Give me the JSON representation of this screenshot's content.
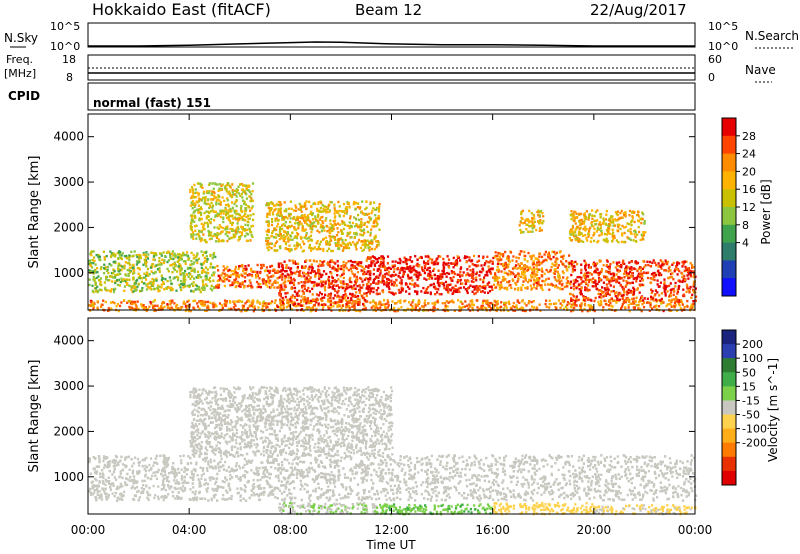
{
  "header": {
    "title": "Hokkaido East (fitACF)",
    "beam": "Beam 12",
    "date": "22/Aug/2017"
  },
  "nsky_panel": {
    "label": "N.Sky",
    "tick_top": "10^5",
    "tick_bottom": "10^0",
    "right_label": "N.Search",
    "right_tick_top": "10^5",
    "right_tick_bottom": "10^0"
  },
  "freq_panel": {
    "label_line1": "Freq.",
    "label_line2": "[MHz]",
    "tick_top": "18",
    "tick_bottom": "8",
    "right_tick_top": "60",
    "right_tick_bottom": "0",
    "right_label": "Nave"
  },
  "cpid_panel": {
    "label": "CPID",
    "text": "normal (fast) 151"
  },
  "power_panel": {
    "ylabel": "Slant Range [km]",
    "yticks": [
      "4000",
      "3000",
      "2000",
      "1000"
    ],
    "colorbar_title": "Power [dB]",
    "colorbar_ticks": [
      "28",
      "24",
      "20",
      "16",
      "12",
      "8",
      "4"
    ],
    "colors": [
      "#e60000",
      "#ff4500",
      "#ff8c00",
      "#ffb300",
      "#c8c000",
      "#8cc63f",
      "#3fa34d",
      "#2e7d6b",
      "#1f3fb4",
      "#1010ff"
    ]
  },
  "velocity_panel": {
    "ylabel": "Slant Range [km]",
    "yticks": [
      "4000",
      "3000",
      "2000",
      "1000"
    ],
    "colorbar_title": "Velocity [m s^-1]",
    "colorbar_ticks": [
      "200",
      "100",
      "50",
      "15",
      "-15",
      "-50",
      "-100",
      "-200"
    ],
    "colors": [
      "#1a237e",
      "#2b3fb0",
      "#2e7d32",
      "#3fae49",
      "#7bd14a",
      "#c8c8c0",
      "#ffd24d",
      "#ffae1a",
      "#ff7a00",
      "#e83000",
      "#e00000"
    ]
  },
  "x_axis": {
    "ticks": [
      "00:00",
      "04:00",
      "08:00",
      "12:00",
      "16:00",
      "20:00",
      "00:00"
    ],
    "label": "Time UT"
  },
  "chart_data": [
    {
      "type": "line",
      "title": "N.Sky / N.Search",
      "x": [
        0,
        2,
        4,
        6,
        8,
        9,
        10,
        12,
        14,
        16,
        18,
        20,
        22,
        24
      ],
      "series": [
        {
          "values": [
            1,
            1,
            1.5,
            3,
            6,
            8,
            7,
            3,
            2,
            2,
            1.5,
            1,
            1,
            1
          ]
        }
      ],
      "xlim": [
        0,
        24
      ],
      "ylim_log": [
        1,
        100000
      ]
    },
    {
      "type": "line",
      "title": "Freq / Nave",
      "x": [
        0,
        24
      ],
      "series": [
        {
          "values": [
            10.5,
            10.5
          ]
        },
        {
          "values": [
            11.5,
            11.5
          ]
        }
      ],
      "xlim": [
        0,
        24
      ],
      "ylim": [
        8,
        18
      ]
    },
    {
      "type": "heatmap",
      "title": "Power [dB]",
      "xlabel": "Time UT",
      "ylabel": "Slant Range [km]",
      "xlim": [
        0,
        24
      ],
      "ylim": [
        180,
        4500
      ],
      "colorbar_range": [
        0,
        32
      ],
      "regions": [
        {
          "t0": 0.0,
          "t1": 24.0,
          "r0": 180,
          "r1": 420,
          "value": 24
        },
        {
          "t0": 0.0,
          "t1": 5.0,
          "r0": 600,
          "r1": 1500,
          "value": 16
        },
        {
          "t0": 5.0,
          "t1": 7.5,
          "r0": 700,
          "r1": 1200,
          "value": 26
        },
        {
          "t0": 7.5,
          "t1": 11.0,
          "r0": 300,
          "r1": 1300,
          "value": 28
        },
        {
          "t0": 11.0,
          "t1": 16.0,
          "r0": 550,
          "r1": 1400,
          "value": 30
        },
        {
          "t0": 16.0,
          "t1": 19.0,
          "r0": 650,
          "r1": 1500,
          "value": 24
        },
        {
          "t0": 19.0,
          "t1": 24.0,
          "r0": 400,
          "r1": 1300,
          "value": 28
        },
        {
          "t0": 4.0,
          "t1": 6.5,
          "r0": 1700,
          "r1": 3000,
          "value": 18
        },
        {
          "t0": 7.0,
          "t1": 11.5,
          "r0": 1500,
          "r1": 2600,
          "value": 20
        },
        {
          "t0": 17.0,
          "t1": 18.0,
          "r0": 1900,
          "r1": 2400,
          "value": 20
        },
        {
          "t0": 19.0,
          "t1": 22.0,
          "r0": 1700,
          "r1": 2400,
          "value": 20
        }
      ]
    },
    {
      "type": "heatmap",
      "title": "Velocity [m s^-1]",
      "xlabel": "Time UT",
      "ylabel": "Slant Range [km]",
      "xlim": [
        0,
        24
      ],
      "ylim": [
        180,
        4500
      ],
      "colorbar_range": [
        -250,
        250
      ],
      "regions": [
        {
          "t0": 0.0,
          "t1": 24.0,
          "r0": 500,
          "r1": 1500,
          "value": 0
        },
        {
          "t0": 4.0,
          "t1": 12.0,
          "r0": 1500,
          "r1": 3000,
          "value": 0
        },
        {
          "t0": 7.5,
          "t1": 11.5,
          "r0": 200,
          "r1": 450,
          "value": 20
        },
        {
          "t0": 11.5,
          "t1": 16.0,
          "r0": 200,
          "r1": 420,
          "value": 60
        },
        {
          "t0": 16.0,
          "t1": 20.0,
          "r0": 200,
          "r1": 450,
          "value": -50
        },
        {
          "t0": 20.0,
          "t1": 24.0,
          "r0": 200,
          "r1": 400,
          "value": -30
        }
      ]
    }
  ]
}
